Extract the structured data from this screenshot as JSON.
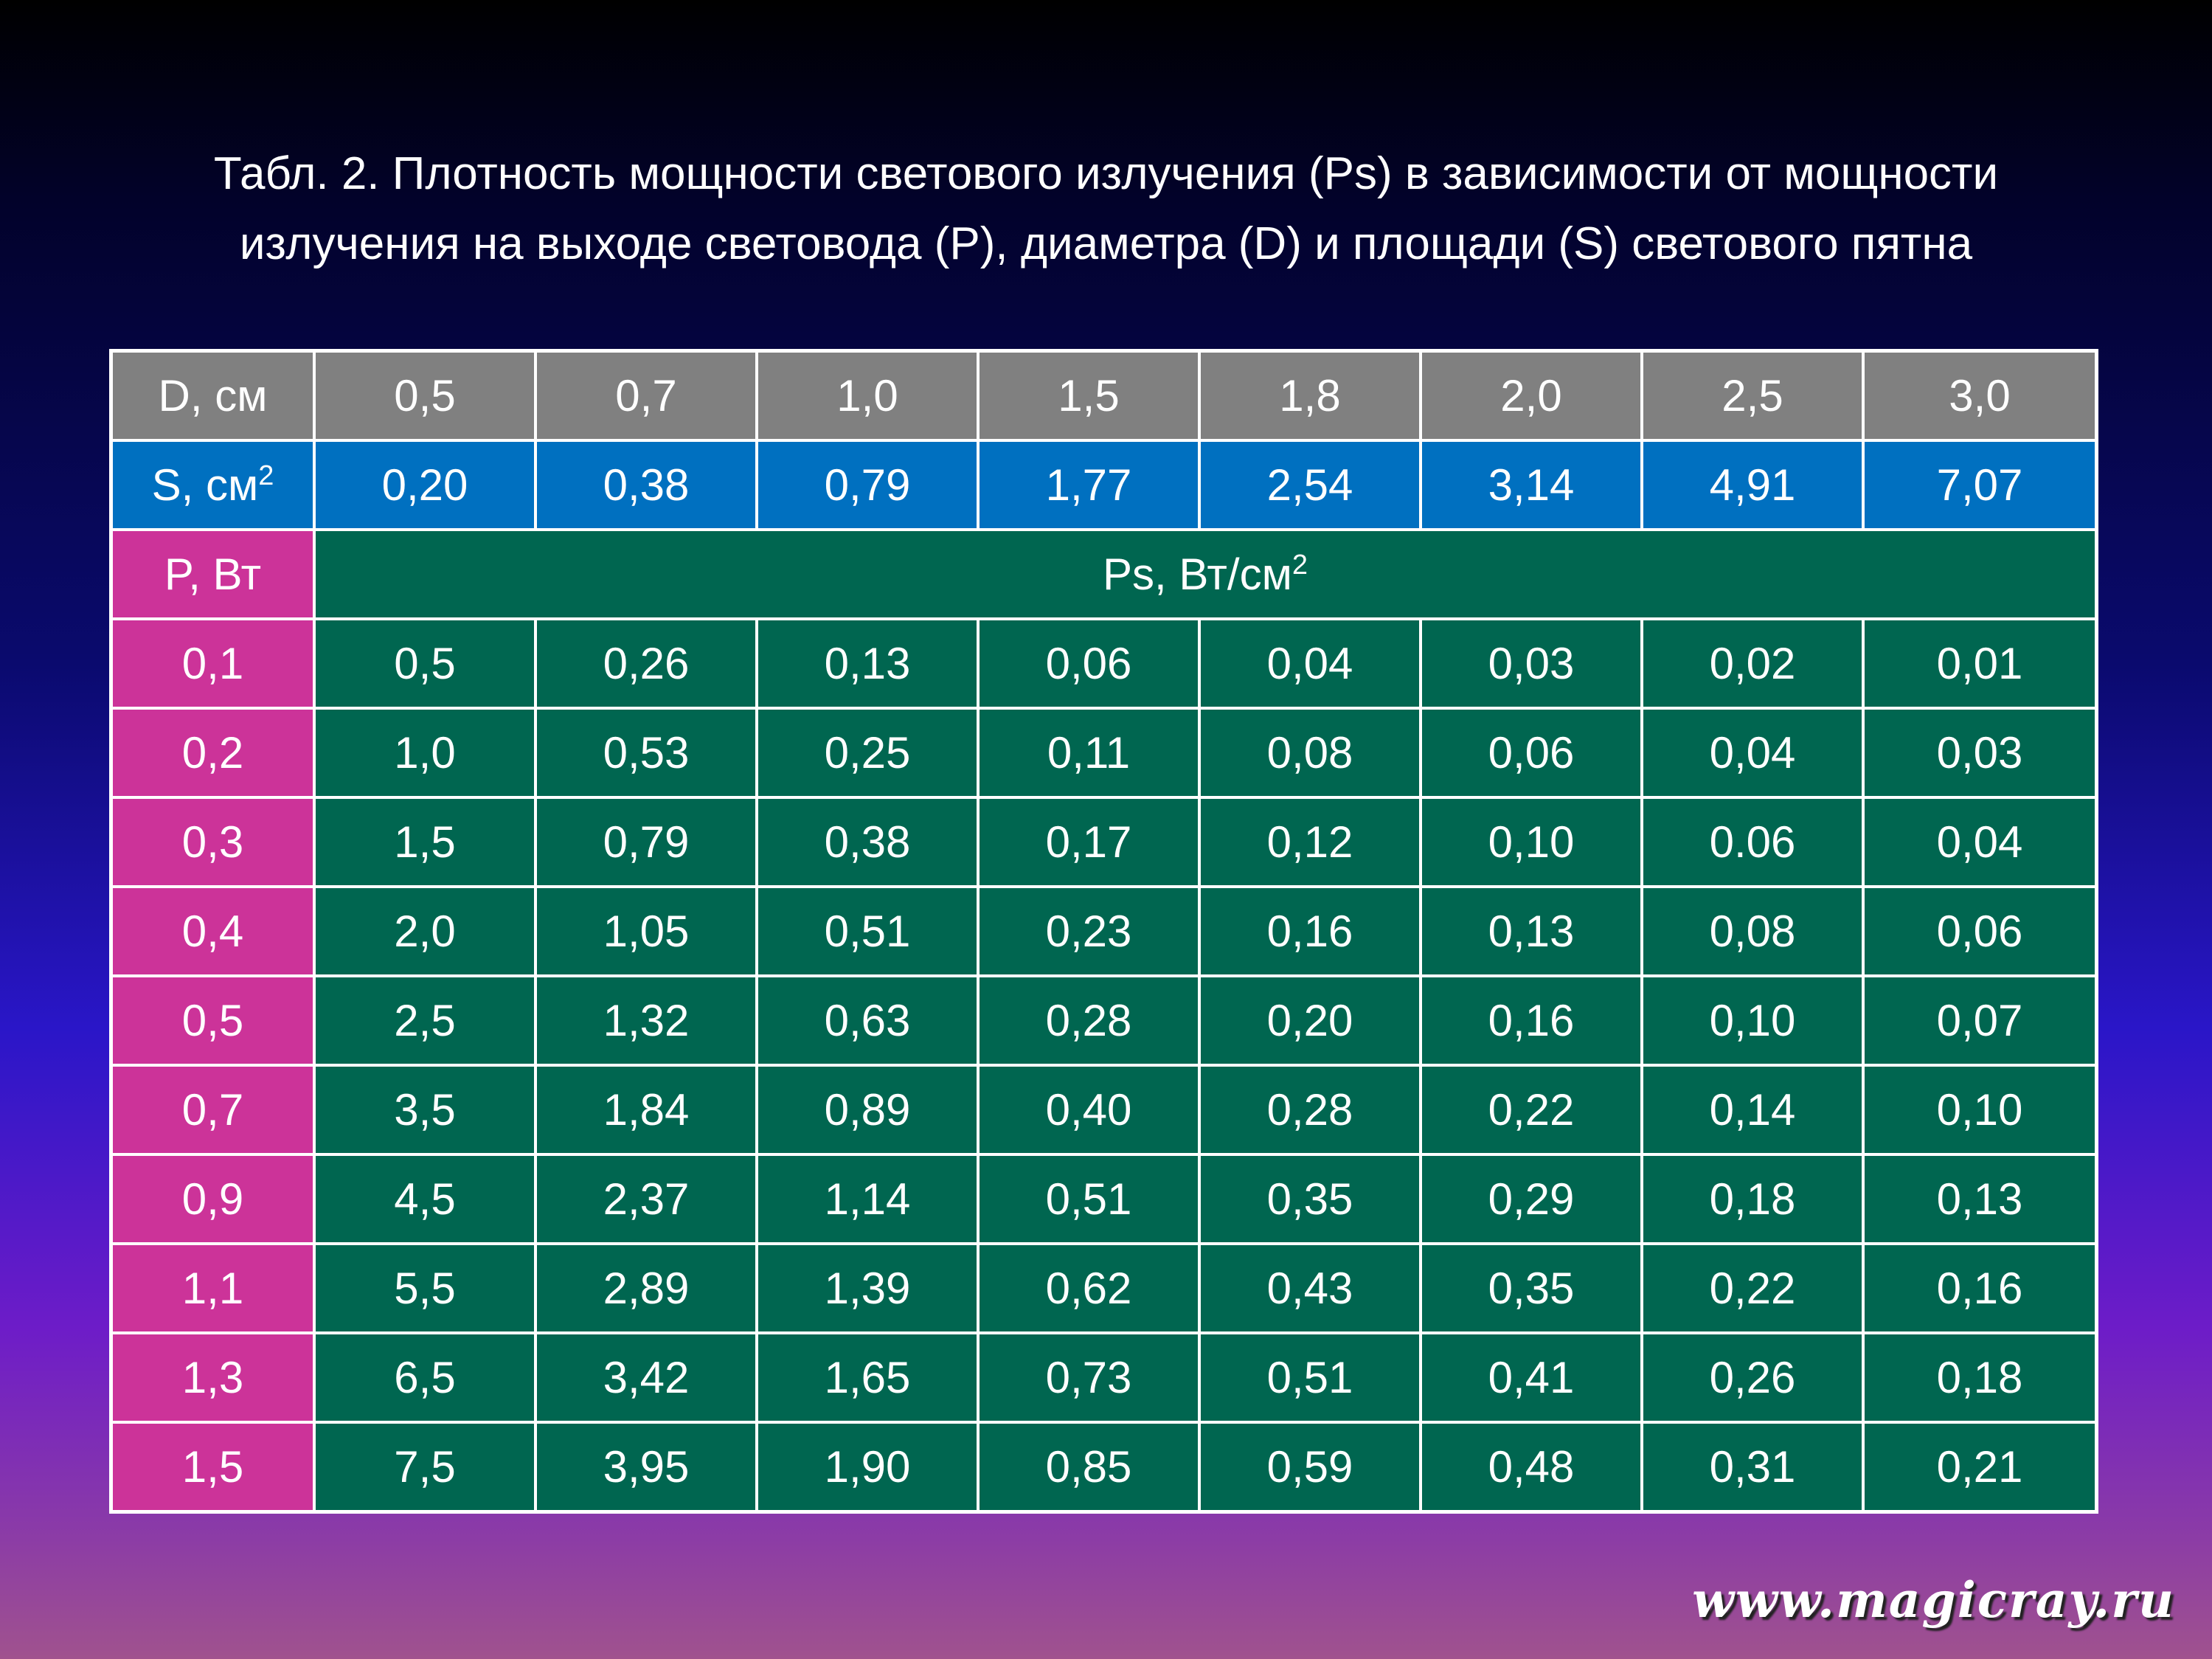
{
  "title": {
    "line1": "Табл. 2.  Плотность мощности светового излучения (Ps) в зависимости от мощности",
    "line2": "излучения на выходе световода (P), диаметра (D) и площади (S) светового пятна"
  },
  "table": {
    "d_header": "D, см",
    "d_values": [
      "0,5",
      "0,7",
      "1,0",
      "1,5",
      "1,8",
      "2,0",
      "2,5",
      "3,0"
    ],
    "s_header": "S, см",
    "s_sup": "2",
    "s_values": [
      "0,20",
      "0,38",
      "0,79",
      "1,77",
      "2,54",
      "3,14",
      "4,91",
      "7,07"
    ],
    "p_header": "P, Вт",
    "ps_header": "Ps, Вт/см",
    "ps_sup": "2",
    "rows": [
      {
        "p": "0,1",
        "values": [
          "0,5",
          "0,26",
          "0,13",
          "0,06",
          "0,04",
          "0,03",
          "0,02",
          "0,01"
        ]
      },
      {
        "p": "0,2",
        "values": [
          "1,0",
          "0,53",
          "0,25",
          "0,11",
          "0,08",
          "0,06",
          "0,04",
          "0,03"
        ]
      },
      {
        "p": "0,3",
        "values": [
          "1,5",
          "0,79",
          "0,38",
          "0,17",
          "0,12",
          "0,10",
          "0.06",
          "0,04"
        ]
      },
      {
        "p": "0,4",
        "values": [
          "2,0",
          "1,05",
          "0,51",
          "0,23",
          "0,16",
          "0,13",
          "0,08",
          "0,06"
        ]
      },
      {
        "p": "0,5",
        "values": [
          "2,5",
          "1,32",
          "0,63",
          "0,28",
          "0,20",
          "0,16",
          "0,10",
          "0,07"
        ]
      },
      {
        "p": "0,7",
        "values": [
          "3,5",
          "1,84",
          "0,89",
          "0,40",
          "0,28",
          "0,22",
          "0,14",
          "0,10"
        ]
      },
      {
        "p": "0,9",
        "values": [
          "4,5",
          "2,37",
          "1,14",
          "0,51",
          "0,35",
          "0,29",
          "0,18",
          "0,13"
        ]
      },
      {
        "p": "1,1",
        "values": [
          "5,5",
          "2,89",
          "1,39",
          "0,62",
          "0,43",
          "0,35",
          "0,22",
          "0,16"
        ]
      },
      {
        "p": "1,3",
        "values": [
          "6,5",
          "3,42",
          "1,65",
          "0,73",
          "0,51",
          "0,41",
          "0,26",
          "0,18"
        ]
      },
      {
        "p": "1,5",
        "values": [
          "7,5",
          "3,95",
          "1,90",
          "0,85",
          "0,59",
          "0,48",
          "0,31",
          "0,21"
        ]
      }
    ]
  },
  "footer": {
    "site": "www.magicray.ru"
  },
  "colors": {
    "d_row": "#808080",
    "s_row": "#0070c0",
    "p_column": "#cc3399",
    "ps_cells": "#006650"
  }
}
